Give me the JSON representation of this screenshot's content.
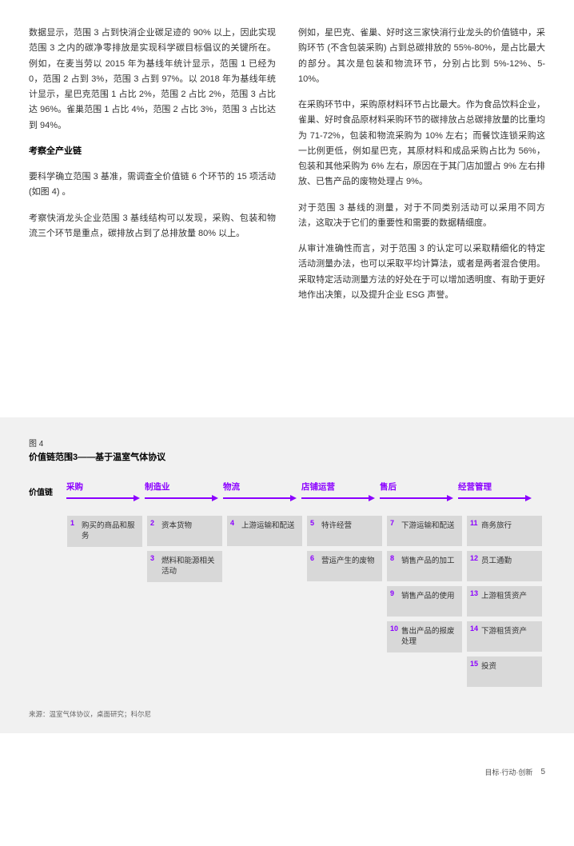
{
  "leftCol": {
    "p1": "数据显示，范围 3 占到快消企业碳足迹的 90% 以上，因此实现范围 3 之内的碳净零排放是实现科学碳目标倡议的关键所在。例如，在麦当劳以 2015 年为基线年统计显示，范围 1 已经为 0，范围 2 占到 3%，范围 3 占到 97%。以 2018 年为基线年统计显示，星巴克范围 1 占比 2%，范围 2 占比 2%，范围 3 占比达 96%。雀巢范围 1 占比 4%，范围 2 占比 3%，范围 3 占比达到 94%。",
    "h1": "考察全产业链",
    "p2": "要科学确立范围 3 基准，需调查全价值链 6 个环节的 15 项活动 (如图 4) 。",
    "p3": "考察快消龙头企业范围 3 基线结构可以发现，采购、包装和物流三个环节是重点，碳排放占到了总排放量 80% 以上。"
  },
  "rightCol": {
    "p1": "例如，星巴克、雀巢、好时这三家快消行业龙头的价值链中，采购环节 (不含包装采购) 占到总碳排放的 55%-80%，是占比最大的部分。其次是包装和物流环节，分别占比到 5%-12%、5-10%。",
    "p2": "在采购环节中，采购原材料环节占比最大。作为食品饮料企业，雀巢、好时食品原材料采购环节的碳排放占总碳排放量的比重均为 71-72%，包装和物流采购为 10% 左右；而餐饮连锁采购这一比例更低，例如星巴克，其原材料和成品采购占比为 56%，包装和其他采购为 6% 左右，原因在于其门店加盟占 9% 左右排放、已售产品的废物处理占 9%。",
    "p3": "对于范围 3 基线的测量，对于不同类别活动可以采用不同方法，这取决于它们的重要性和需要的数据精细度。",
    "p4": "从审计准确性而言，对于范围 3 的认定可以采取精细化的特定活动测量办法，也可以采取平均计算法，或者是两者混合使用。采取特定活动测量方法的好处在于可以增加透明度、有助于更好地作出决策，以及提升企业 ESG 声誉。"
  },
  "fig": {
    "label": "图 4",
    "title": "价值链范围3——基于温室气体协议",
    "chainLabel": "价值链",
    "stages": [
      "采购",
      "制造业",
      "物流",
      "店铺运营",
      "售后",
      "经营管理"
    ],
    "cols": [
      [
        {
          "n": "1",
          "t": "购买的商品和服务"
        }
      ],
      [
        {
          "n": "2",
          "t": "资本货物"
        },
        {
          "n": "3",
          "t": "燃料和能源相关活动"
        }
      ],
      [
        {
          "n": "4",
          "t": "上游运输和配送"
        }
      ],
      [
        {
          "n": "5",
          "t": "特许经营"
        },
        {
          "n": "6",
          "t": "营运产生的废物"
        }
      ],
      [
        {
          "n": "7",
          "t": "下游运输和配送"
        },
        {
          "n": "8",
          "t": "销售产品的加工"
        },
        {
          "n": "9",
          "t": "销售产品的使用"
        },
        {
          "n": "10",
          "t": "售出产品的报废处理"
        }
      ],
      [
        {
          "n": "11",
          "t": "商务旅行"
        },
        {
          "n": "12",
          "t": "员工通勤"
        },
        {
          "n": "13",
          "t": "上游租赁资产"
        },
        {
          "n": "14",
          "t": "下游租赁资产"
        },
        {
          "n": "15",
          "t": "投资"
        }
      ]
    ],
    "source": "来源：温室气体协议，桌面研究；科尔尼"
  },
  "footer": {
    "text": "目标·行动·创新",
    "page": "5"
  },
  "colors": {
    "purple": "#8b00ff",
    "boxBg": "#d8d8d8",
    "figBg": "#f1f1f1"
  }
}
